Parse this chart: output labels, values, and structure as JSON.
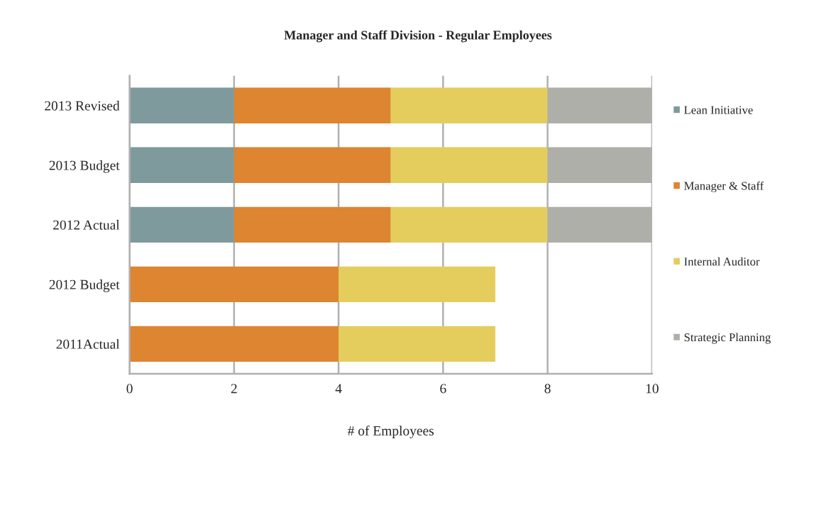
{
  "chart_data": {
    "type": "bar",
    "orientation": "horizontal",
    "stacked": true,
    "title": "Manager and Staff Division - Regular Employees",
    "xlabel": "# of Employees",
    "categories": [
      "2013 Revised",
      "2013 Budget",
      "2012 Actual",
      "2012 Budget",
      "2011Actual"
    ],
    "series": [
      {
        "name": "Lean Initiative",
        "color": "#7f9a9c",
        "values": [
          2,
          2,
          2,
          null,
          null
        ]
      },
      {
        "name": "Manager & Staff",
        "color": "#dd8530",
        "values": [
          3,
          3,
          3,
          4,
          4
        ]
      },
      {
        "name": "Internal Auditor",
        "color": "#e4cd5c",
        "values": [
          3,
          3,
          3,
          3,
          3
        ]
      },
      {
        "name": "Strategic Planning",
        "color": "#afafaa",
        "values": [
          2,
          2,
          2,
          null,
          null
        ]
      }
    ],
    "xlim": [
      0,
      10
    ],
    "xticks": [
      0,
      2,
      4,
      6,
      8,
      10
    ],
    "grid": "x",
    "legend": "right"
  }
}
